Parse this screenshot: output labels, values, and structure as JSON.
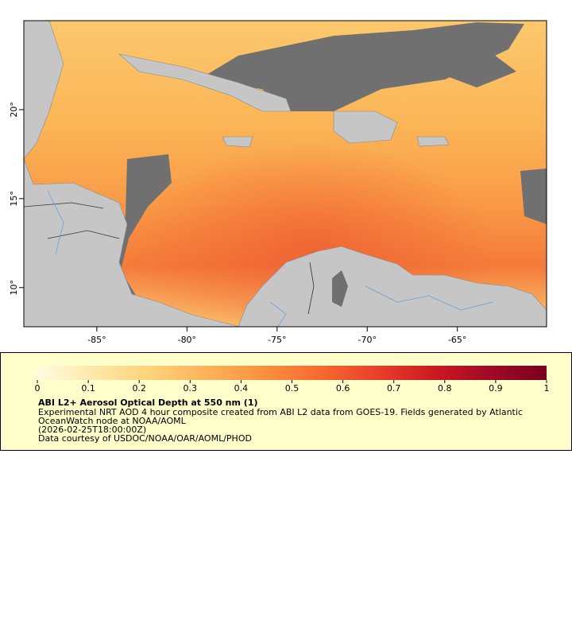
{
  "map": {
    "xlim": [
      -89.05,
      -60.05
    ],
    "ylim": [
      7.8,
      25
    ],
    "xticks": [
      {
        "value": -85,
        "label": "-85°"
      },
      {
        "value": -80,
        "label": "-80°"
      },
      {
        "value": -75,
        "label": "-75°"
      },
      {
        "value": -70,
        "label": "-70°"
      },
      {
        "value": -65,
        "label": "-65°"
      }
    ],
    "yticks": [
      {
        "value": 10,
        "label": "10°"
      },
      {
        "value": 15,
        "label": "15°"
      },
      {
        "value": 20,
        "label": "20°"
      }
    ]
  },
  "legend": {
    "colorbar": {
      "lim": [
        0,
        1
      ],
      "ticks": [
        0,
        0.1,
        0.2,
        0.3,
        0.4,
        0.5,
        0.6,
        0.7,
        0.8,
        0.9,
        1
      ],
      "colors": [
        "#fffbe0",
        "#fee8a8",
        "#fed27a",
        "#fdb25a",
        "#fb9040",
        "#f76a30",
        "#e8402a",
        "#cc1a22",
        "#a00a26",
        "#78001e"
      ]
    },
    "title": "ABI L2+ Aerosol Optical Depth at 550 nm (1)",
    "lines": [
      "Experimental NRT AOD 4 hour composite created from ABI L2 data from GOES-19. Fields generated by Atlantic",
      "OceanWatch node at NOAA/AOML",
      "(2026-02-25T18:00:00Z)",
      "Data courtesy of USDOC/NOAA/OAR/AOML/PHOD"
    ]
  }
}
